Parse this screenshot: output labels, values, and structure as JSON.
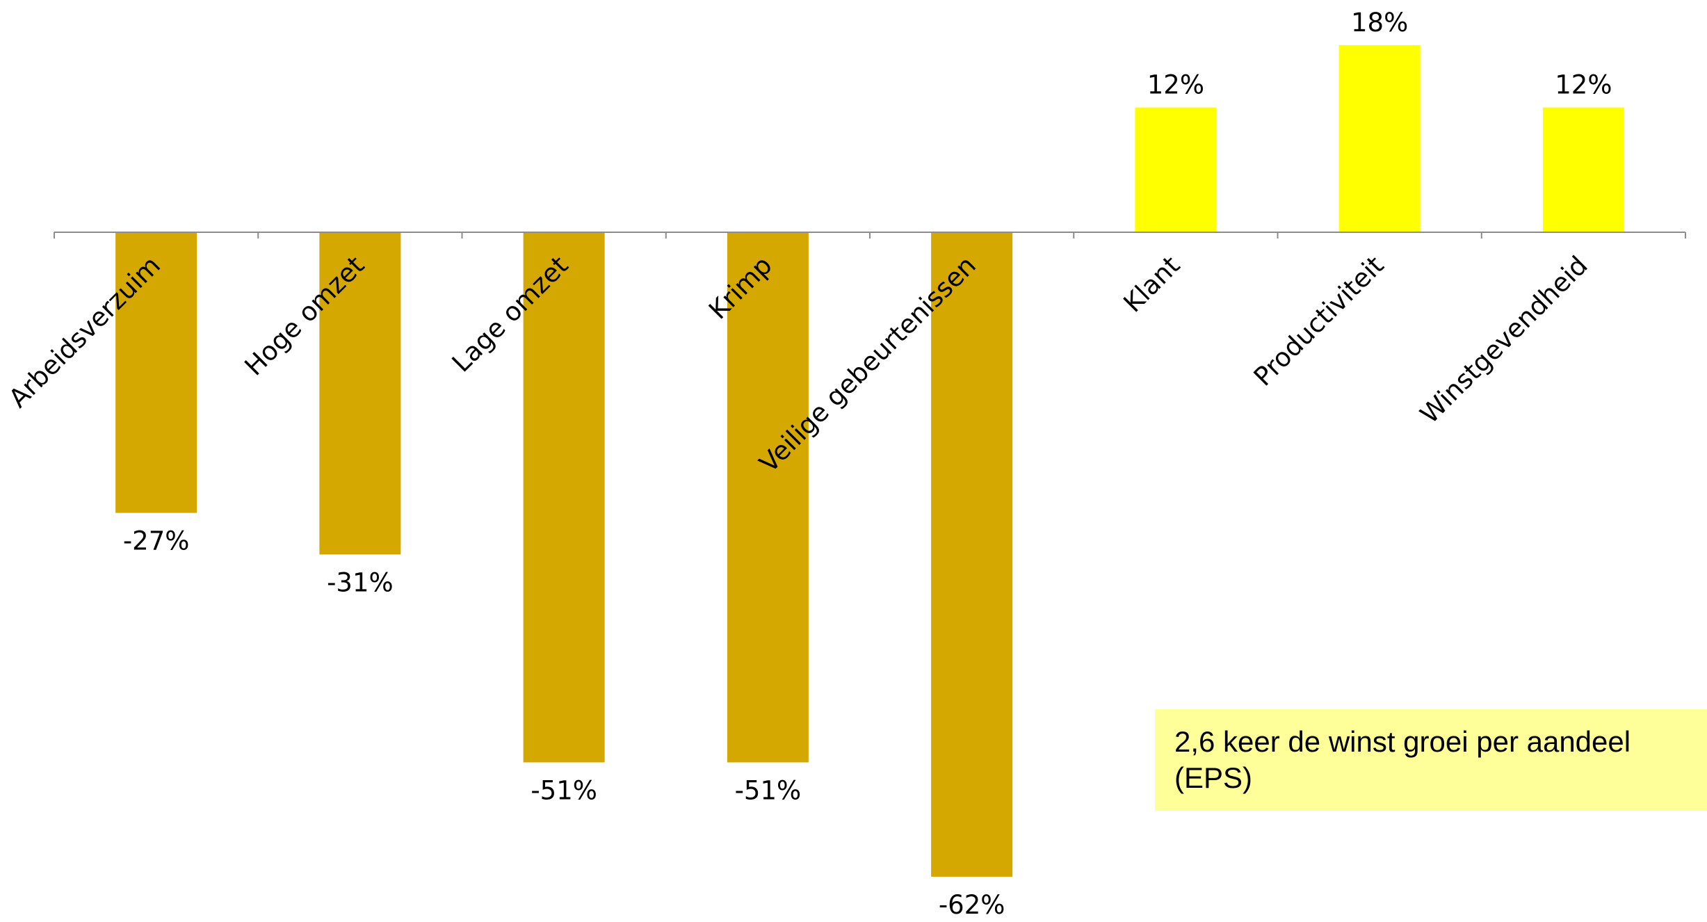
{
  "chart_data": {
    "type": "bar",
    "categories": [
      "Arbeidsverzuim",
      "Hoge omzet",
      "Lage omzet",
      "Krimp",
      "Veilige gebeurtenissen",
      "Klant",
      "Productiviteit",
      "Winstgevendheid"
    ],
    "values": [
      -27,
      -31,
      -51,
      -51,
      -62,
      12,
      18,
      12
    ],
    "data_labels": [
      "-27%",
      "-31%",
      "-51%",
      "-51%",
      "-62%",
      "12%",
      "18%",
      "12%"
    ],
    "unit": "%",
    "title": "",
    "xlabel": "",
    "ylabel": "",
    "ylim": [
      -62,
      18
    ],
    "grid": false,
    "legend": "none",
    "colors": {
      "negative": "#D4A800",
      "positive": "#FFFF00",
      "axis": "#8C8C8C",
      "note_background": "#FFFF99"
    }
  },
  "note": {
    "text": "2,6 keer de winst groei per aandeel (EPS)"
  }
}
